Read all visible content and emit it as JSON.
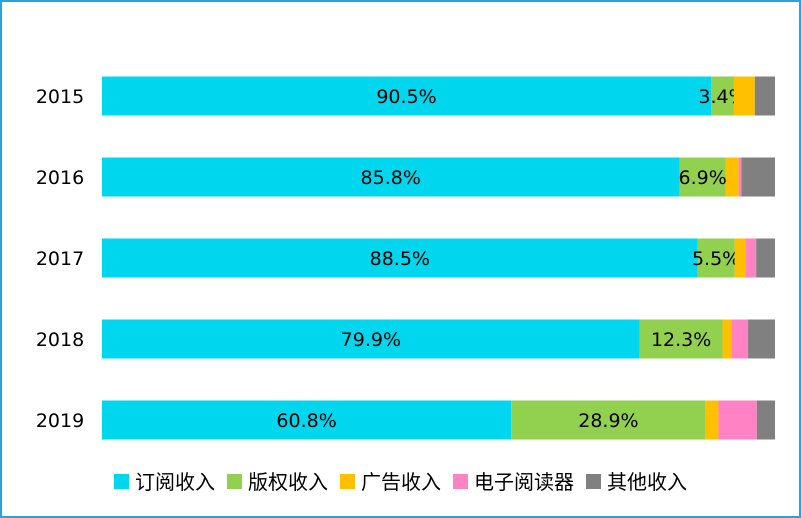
{
  "chart_data": {
    "type": "bar",
    "orientation": "horizontal",
    "stacked": true,
    "categories": [
      "2015",
      "2016",
      "2017",
      "2018",
      "2019"
    ],
    "series": [
      {
        "name": "订阅收入",
        "color": "#00d7ee",
        "values": [
          90.5,
          85.8,
          88.5,
          79.9,
          60.8
        ]
      },
      {
        "name": "版权收入",
        "color": "#92d050",
        "values": [
          3.4,
          6.9,
          5.5,
          12.3,
          28.9
        ]
      },
      {
        "name": "广告收入",
        "color": "#ffc000",
        "values": [
          3.1,
          1.9,
          1.6,
          1.3,
          1.9
        ]
      },
      {
        "name": "电子阅读器",
        "color": "#ff82c4",
        "values": [
          0.0,
          0.4,
          1.6,
          2.5,
          5.7
        ]
      },
      {
        "name": "其他收入",
        "color": "#808080",
        "values": [
          3.0,
          5.0,
          2.8,
          4.0,
          2.7
        ]
      }
    ],
    "labels": [
      [
        "90.5%",
        "3.4%",
        null,
        null,
        null
      ],
      [
        "85.8%",
        "6.9%",
        null,
        null,
        null
      ],
      [
        "88.5%",
        "5.5%",
        null,
        null,
        null
      ],
      [
        "79.9%",
        "12.3%",
        null,
        null,
        null
      ],
      [
        "60.8%",
        "28.9%",
        null,
        null,
        null
      ]
    ],
    "xlim": [
      0,
      100
    ],
    "grid": false,
    "legend_position": "bottom"
  }
}
